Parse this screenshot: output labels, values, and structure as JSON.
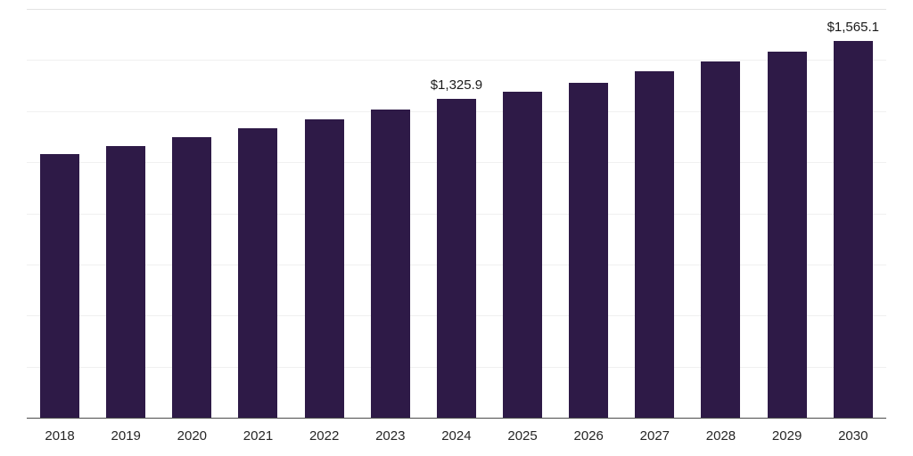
{
  "chart_data": {
    "type": "bar",
    "title": "",
    "xlabel": "",
    "ylabel": "",
    "categories": [
      "2018",
      "2019",
      "2020",
      "2021",
      "2022",
      "2023",
      "2024",
      "2025",
      "2026",
      "2027",
      "2028",
      "2029",
      "2030"
    ],
    "values": [
      1098.0,
      1131.0,
      1165.0,
      1205.0,
      1242.0,
      1280.0,
      1325.9,
      1357.0,
      1394.0,
      1439.0,
      1480.0,
      1521.0,
      1565.1
    ],
    "data_labels": [
      null,
      null,
      null,
      null,
      null,
      null,
      "$1,325.9",
      null,
      null,
      null,
      null,
      null,
      "$1,565.1"
    ],
    "ylim": [
      0,
      1700
    ],
    "grid": "horizontal",
    "gridline_count": 8,
    "legend": "none",
    "bar_color": "#2e1a47"
  },
  "colors": {
    "bar": "#2e1a47",
    "gridline": "#f0f0f0",
    "top_gridline": "#e3e3e3",
    "axis_line": "#4d4d4d",
    "tick_text": "#262626",
    "label_text": "#1a1a1a",
    "background": "#ffffff"
  }
}
